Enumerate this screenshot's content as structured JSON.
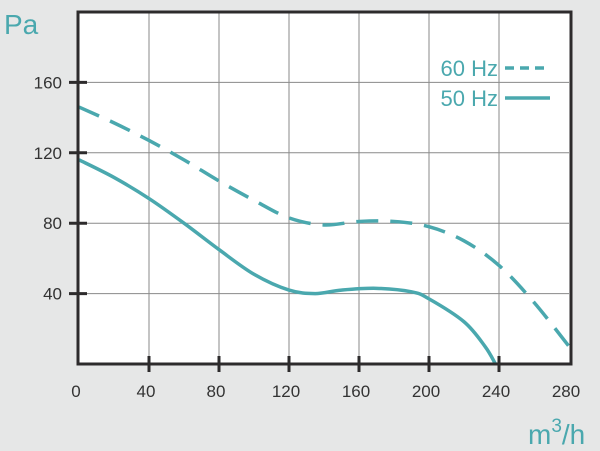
{
  "chart_data": {
    "type": "line",
    "ylabel": "Pa",
    "xlabel": "m³/h",
    "xlabel_base": "m",
    "xlabel_sup": "3",
    "xlabel_tail": "/h",
    "xlim": [
      0,
      280
    ],
    "ylim": [
      0,
      200
    ],
    "xticks": [
      0,
      40,
      80,
      120,
      160,
      200,
      240,
      280
    ],
    "yticks": [
      40,
      80,
      120,
      160
    ],
    "grid": true,
    "legend_position": "top-right",
    "color": "#4aa8ae",
    "series": [
      {
        "name": "60 Hz",
        "style": "dashed",
        "x": [
          0,
          20,
          40,
          60,
          80,
          100,
          120,
          140,
          160,
          180,
          200,
          220,
          240,
          260,
          280
        ],
        "y": [
          146,
          137,
          127,
          116,
          104,
          93,
          83,
          79,
          81,
          81,
          78,
          70,
          56,
          35,
          10
        ]
      },
      {
        "name": "50 Hz",
        "style": "solid",
        "x": [
          0,
          20,
          40,
          60,
          80,
          100,
          120,
          135,
          150,
          170,
          190,
          200,
          220,
          232,
          238
        ],
        "y": [
          116,
          106,
          94,
          80,
          65,
          51,
          42,
          40,
          42,
          43,
          41,
          37,
          24,
          10,
          0
        ]
      }
    ]
  }
}
